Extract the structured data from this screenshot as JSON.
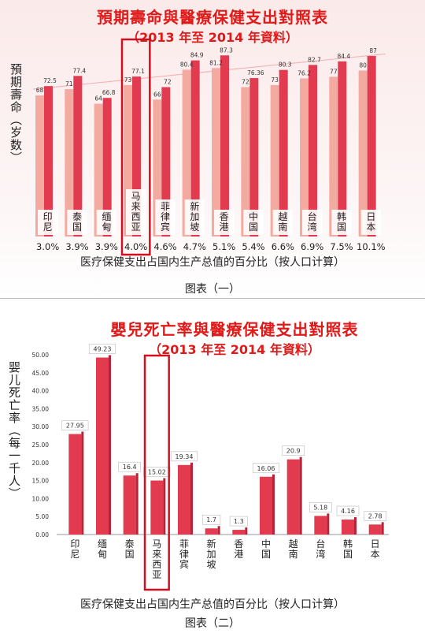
{
  "chart_data": [
    {
      "type": "bar",
      "title": "預期壽命與醫療保健支出對照表",
      "subtitle": "（2013 年至 2014 年資料）",
      "ylabel": "預期壽命（岁数）",
      "xlabel": "医疗保健支出占国内生产总值的百分比（按人口计算）",
      "caption": "图表（一）",
      "categories": [
        "印尼",
        "泰国",
        "缅甸",
        "马来西亚",
        "菲律宾",
        "新加坡",
        "香港",
        "中国",
        "越南",
        "台湾",
        "韩国",
        "日本"
      ],
      "percentages": [
        "3.0%",
        "3.9%",
        "3.9%",
        "4.0%",
        "4.6%",
        "4.7%",
        "5.1%",
        "5.4%",
        "6.6%",
        "6.9%",
        "7.5%",
        "10.1%"
      ],
      "series": [
        {
          "values": [
            68,
            71,
            64,
            73,
            66,
            80.4,
            81.2,
            72,
            73,
            76.2,
            77,
            80
          ]
        },
        {
          "values": [
            72.5,
            77.4,
            66.8,
            77.1,
            72,
            84.9,
            87.3,
            76.36,
            80.3,
            82.7,
            84.4,
            87
          ]
        }
      ],
      "ylim": [
        0,
        95
      ],
      "highlight": "马来西亚",
      "colors": {
        "back": "#f3aaa0",
        "front": "#e23a4e",
        "highlight_box": "#d01020"
      }
    },
    {
      "type": "bar",
      "title": "嬰兒死亡率與醫療保健支出對照表",
      "subtitle": "（2013 年至 2014 年資料）",
      "ylabel": "婴儿死亡率（每一千人）",
      "xlabel": "医疗保健支出占国内生产总值的百分比（按人口计算）",
      "caption": "图表（二）",
      "categories": [
        "印尼",
        "缅甸",
        "泰国",
        "马来西亚",
        "菲律宾",
        "新加坡",
        "香港",
        "中国",
        "越南",
        "台湾",
        "韩国",
        "日本"
      ],
      "values": [
        27.95,
        49.23,
        16.4,
        15.02,
        19.34,
        1.7,
        1.3,
        16.06,
        20.9,
        5.18,
        4.16,
        2.78
      ],
      "yticks": [
        "0.00",
        "5.00",
        "10.00",
        "15.00",
        "20.00",
        "25.00",
        "30.00",
        "35.00",
        "40.00",
        "45.00",
        "50.00"
      ],
      "ylim": [
        0,
        50
      ],
      "highlight": "马来西亚",
      "colors": {
        "bar": "#e23a4e",
        "highlight_box": "#d01020"
      }
    }
  ]
}
